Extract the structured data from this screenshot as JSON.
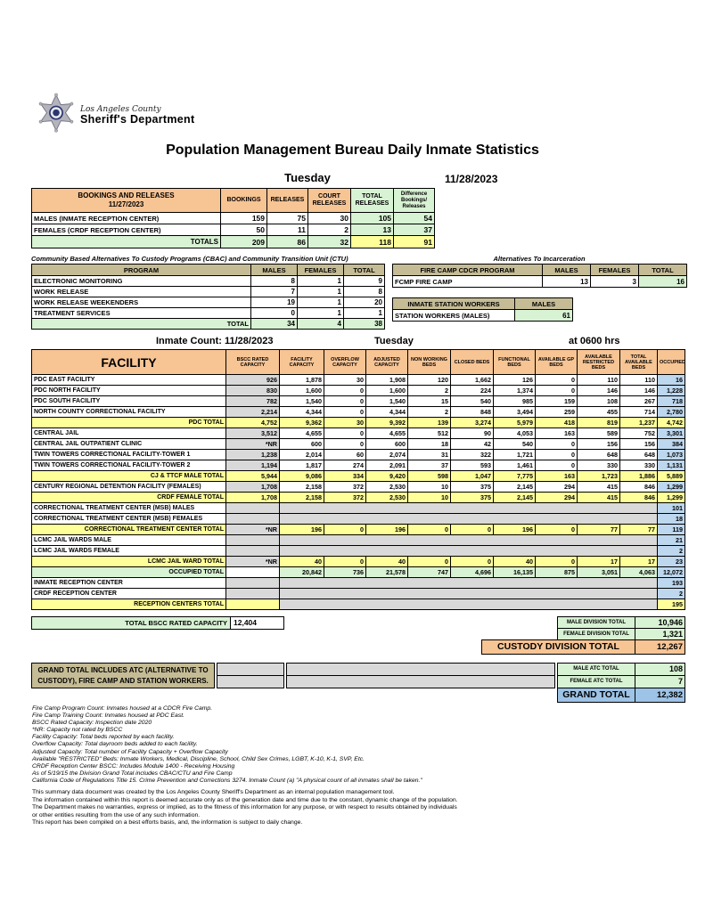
{
  "colors": {
    "header_orange": "#F7C494",
    "light_green": "#D8F2D4",
    "total_yellow": "#FFFF99",
    "occupied_blue": "#BDD7EE",
    "grand_total_blue": "#9DC3E6",
    "section_tan": "#C5BC96",
    "merged_gray": "#D9D9D9"
  },
  "logo": {
    "county": "Los Angeles County",
    "department": "Sheriff's Department"
  },
  "title": "Population Management Bureau Daily Inmate Statistics",
  "bookings": {
    "day": "Tuesday",
    "date": "11/28/2023",
    "header": {
      "title": "BOOKINGS AND RELEASES",
      "subtitle": "11/27/2023",
      "cols": [
        "BOOKINGS",
        "RELEASES",
        "COURT RELEASES",
        "TOTAL RELEASES",
        "Difference Bookings/ Releases"
      ]
    },
    "rows": [
      {
        "label": "MALES (INMATE RECEPTION CENTER)",
        "values": [
          "159",
          "75",
          "30",
          "105",
          "54"
        ]
      },
      {
        "label": "FEMALES (CRDF RECEPTION CENTER)",
        "values": [
          "50",
          "11",
          "2",
          "13",
          "37"
        ]
      }
    ],
    "totals": {
      "label": "TOTALS",
      "values": [
        "209",
        "86",
        "32",
        "118",
        "91"
      ]
    }
  },
  "cbac": {
    "title": "Community Based Alternatives To Custody Programs (CBAC) and Community Transition Unit (CTU)",
    "cols": [
      "PROGRAM",
      "MALES",
      "FEMALES",
      "TOTAL"
    ],
    "rows": [
      {
        "label": "ELECTRONIC MONITORING",
        "values": [
          "8",
          "1",
          "9"
        ]
      },
      {
        "label": "WORK RELEASE",
        "values": [
          "7",
          "1",
          "8"
        ]
      },
      {
        "label": "WORK RELEASE WEEKENDERS",
        "values": [
          "19",
          "1",
          "20"
        ]
      },
      {
        "label": "TREATMENT SERVICES",
        "values": [
          "0",
          "1",
          "1"
        ]
      }
    ],
    "totals": {
      "label": "TOTAL",
      "values": [
        "34",
        "4",
        "38"
      ]
    }
  },
  "alternatives": {
    "title": "Alternatives To Incarceration",
    "fire_camp": {
      "cols": [
        "FIRE CAMP CDCR PROGRAM",
        "MALES",
        "FEMALES",
        "TOTAL"
      ],
      "row": {
        "label": "FCMP FIRE CAMP",
        "values": [
          "13",
          "3",
          "16"
        ]
      }
    },
    "station_workers": {
      "cols": [
        "INMATE STATION WORKERS",
        "MALES"
      ],
      "row": {
        "label": "STATION WORKERS (MALES)",
        "value": "61"
      }
    }
  },
  "facility_table": {
    "count_label": "Inmate Count: 11/28/2023",
    "day": "Tuesday",
    "time": "at 0600 hrs",
    "columns": [
      "FACILITY",
      "BSCC RATED CAPACITY",
      "FACILITY CAPACITY",
      "OVERFLOW CAPACITY",
      "ADJUSTED CAPACITY",
      "NON WORKING BEDS",
      "CLOSED BEDS",
      "FUNCTIONAL BEDS",
      "AVAILABLE GP BEDS",
      "AVAILABLE RESTRICTED BEDS",
      "TOTAL AVAILABLE BEDS",
      "OCCUPIED"
    ],
    "rows": [
      {
        "t": "facility",
        "label": "PDC EAST FACILITY",
        "bscc": "926",
        "values": [
          "1,878",
          "30",
          "1,908",
          "120",
          "1,662",
          "126",
          "0",
          "110",
          "110"
        ],
        "occupied": "16"
      },
      {
        "t": "facility",
        "label": "PDC NORTH FACILITY",
        "bscc": "830",
        "values": [
          "1,600",
          "0",
          "1,600",
          "2",
          "224",
          "1,374",
          "0",
          "146",
          "146"
        ],
        "occupied": "1,228"
      },
      {
        "t": "facility",
        "label": "PDC SOUTH FACILITY",
        "bscc": "782",
        "values": [
          "1,540",
          "0",
          "1,540",
          "15",
          "540",
          "985",
          "159",
          "108",
          "267"
        ],
        "occupied": "718"
      },
      {
        "t": "facility",
        "label": "NORTH COUNTY CORRECTIONAL FACILITY",
        "bscc": "2,214",
        "values": [
          "4,344",
          "0",
          "4,344",
          "2",
          "848",
          "3,494",
          "259",
          "455",
          "714"
        ],
        "occupied": "2,780"
      },
      {
        "t": "total",
        "label": "PDC TOTAL",
        "bscc": "4,752",
        "values": [
          "9,362",
          "30",
          "9,392",
          "139",
          "3,274",
          "5,979",
          "418",
          "819",
          "1,237"
        ],
        "occupied": "4,742"
      },
      {
        "t": "facility",
        "label": "CENTRAL JAIL",
        "bscc": "3,512",
        "values": [
          "4,655",
          "0",
          "4,655",
          "512",
          "90",
          "4,053",
          "163",
          "589",
          "752"
        ],
        "occupied": "3,301"
      },
      {
        "t": "facility",
        "label": "CENTRAL JAIL OUTPATIENT CLINIC",
        "bscc": "*NR",
        "values": [
          "600",
          "0",
          "600",
          "18",
          "42",
          "540",
          "0",
          "156",
          "156"
        ],
        "occupied": "384"
      },
      {
        "t": "facility",
        "label": "TWIN TOWERS CORRECTIONAL FACILITY-TOWER 1",
        "bscc": "1,238",
        "values": [
          "2,014",
          "60",
          "2,074",
          "31",
          "322",
          "1,721",
          "0",
          "648",
          "648"
        ],
        "occupied": "1,073"
      },
      {
        "t": "facility",
        "label": "TWIN TOWERS CORRECTIONAL FACILITY-TOWER 2",
        "bscc": "1,194",
        "values": [
          "1,817",
          "274",
          "2,091",
          "37",
          "593",
          "1,461",
          "0",
          "330",
          "330"
        ],
        "occupied": "1,131"
      },
      {
        "t": "total",
        "label": "CJ & TTCF MALE TOTAL",
        "bscc": "5,944",
        "values": [
          "9,086",
          "334",
          "9,420",
          "598",
          "1,047",
          "7,775",
          "163",
          "1,723",
          "1,886"
        ],
        "occupied": "5,889"
      },
      {
        "t": "facility",
        "label": "CENTURY REGIONAL DETENTION FACILITY (FEMALES)",
        "bscc": "1,708",
        "values": [
          "2,158",
          "372",
          "2,530",
          "10",
          "375",
          "2,145",
          "294",
          "415",
          "846"
        ],
        "occupied": "1,299"
      },
      {
        "t": "total",
        "label": "CRDF FEMALE TOTAL",
        "bscc": "1,708",
        "values": [
          "2,158",
          "372",
          "2,530",
          "10",
          "375",
          "2,145",
          "294",
          "415",
          "846"
        ],
        "occupied": "1,299"
      },
      {
        "t": "span",
        "label": "CORRECTIONAL TREATMENT CENTER (MSB) MALES",
        "occupied": "101"
      },
      {
        "t": "span",
        "label": "CORRECTIONAL TREATMENT CENTER (MSB) FEMALES",
        "occupied": "18"
      },
      {
        "t": "total_nr",
        "label": "CORRECTIONAL TREATMENT CENTER  TOTAL",
        "bscc": "*NR",
        "values": [
          "196",
          "0",
          "196",
          "0",
          "0",
          "196",
          "0",
          "77",
          "77"
        ],
        "occupied": "119"
      },
      {
        "t": "span",
        "label": "LCMC JAIL WARDS MALE",
        "occupied": "21"
      },
      {
        "t": "span",
        "label": "LCMC JAIL WARDS FEMALE",
        "occupied": "2"
      },
      {
        "t": "total_nr",
        "label": "LCMC JAIL WARD TOTAL",
        "bscc": "*NR",
        "values": [
          "40",
          "0",
          "40",
          "0",
          "0",
          "40",
          "0",
          "17",
          "17"
        ],
        "occupied": "23"
      },
      {
        "t": "grand",
        "label": "OCCUPIED TOTAL",
        "bscc": "",
        "values": [
          "20,842",
          "736",
          "21,578",
          "747",
          "4,696",
          "16,135",
          "875",
          "3,051",
          "4,063"
        ],
        "occupied": "12,072"
      },
      {
        "t": "span",
        "label": "INMATE RECEPTION CENTER",
        "occupied": "193"
      },
      {
        "t": "span",
        "label": "CRDF RECEPTION CENTER",
        "occupied": "2"
      },
      {
        "t": "span_total",
        "label": "RECEPTION CENTERS TOTAL",
        "occupied": "195"
      }
    ]
  },
  "bottom": {
    "bscc_total": {
      "label": "TOTAL BSCC RATED CAPACITY",
      "value": "12,404"
    },
    "male_division": {
      "label": "MALE DIVISION TOTAL",
      "value": "10,946"
    },
    "female_division": {
      "label": "FEMALE DIVISION TOTAL",
      "value": "1,321"
    },
    "custody_division": {
      "label": "CUSTODY DIVISION TOTAL",
      "value": "12,267"
    }
  },
  "grand_block": {
    "note_line1": "GRAND TOTAL INCLUDES ATC (ALTERNATIVE TO",
    "note_line2": "CUSTODY), FIRE CAMP AND STATION WORKERS.",
    "male_atc": {
      "label": "MALE ATC TOTAL",
      "value": "108"
    },
    "female_atc": {
      "label": "FEMALE ATC TOTAL",
      "value": "7"
    },
    "grand_total": {
      "label": "GRAND TOTAL",
      "value": "12,382"
    }
  },
  "footnotes": [
    "Fire Camp Program Count: Inmates housed at a CDCR Fire Camp.",
    "Fire Camp Training Count: Inmates housed at PDC East.",
    "BSCC Rated Capacity: Inspection date 2020",
    "*NR: Capacity not rated by BSCC",
    "Facility Capacity: Total beds reported by each facility.",
    "Overflow Capacity: Total dayroom beds added to each facility.",
    "Adjusted Capacity: Total number of Facility Capacity + Overflow Capacity",
    "Available \"RESTRICTED\" Beds: Inmate Workers, Medical, Discipline, School, Child Sex Crimes,  LGBT, K-10, K-1, SVP, Etc.",
    "CRDF Reception Center BSCC: Includes Module 1400 - Receiving Housing",
    "As of 5/19/15 the Division Grand Total includes CBAC/CTU and Fire Camp",
    "California Code of Regulations Title 15. Crime Prevention and Corrections 3274. Inmate Count (a) \"A physical count of all inmates shall be taken.\""
  ],
  "disclaimer": [
    "This summary data document was created by the Los Angeles County Sheriff's Department as an internal population management tool.",
    "The information contained within this report is deemed accurate only as of the generation date and time due to the constant, dynamic change of the population.",
    "The Department makes no warranties, express or implied, as to the fitness of this information for any purpose, or with respect to results obtained by individuals",
    "or other entities resulting from the use of any such information.",
    "This report has been compiled on a best efforts basis, and, the information is subject to daily change."
  ]
}
